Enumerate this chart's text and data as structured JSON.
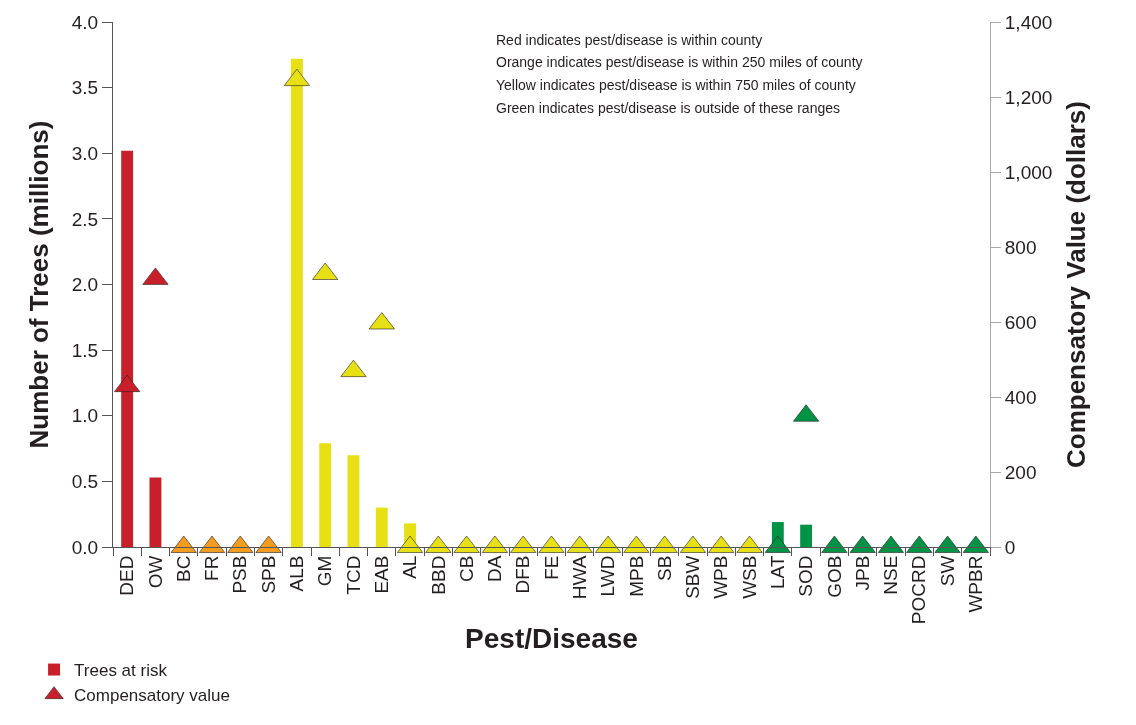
{
  "chart_data": {
    "type": "bar",
    "xlabel": "Pest/Disease",
    "ylabel": "Number of Trees (millions)",
    "y2label": "Compensatory Value (dollars)",
    "categories": [
      "DED",
      "OW",
      "BC",
      "FR",
      "PSB",
      "SPB",
      "ALB",
      "GM",
      "TCD",
      "EAB",
      "AL",
      "BBD",
      "CB",
      "DA",
      "DFB",
      "FE",
      "HWA",
      "LWD",
      "MPB",
      "SB",
      "SBW",
      "WPB",
      "WSB",
      "LAT",
      "SOD",
      "GOB",
      "JPB",
      "NSE",
      "POCRD",
      "SW",
      "WPBR"
    ],
    "series": [
      {
        "name": "Trees at risk",
        "colors": [
          "#c8202a",
          "#c8202a",
          "#f39c1f",
          "#f39c1f",
          "#f39c1f",
          "#f39c1f",
          "#e6e014",
          "#e6e014",
          "#e6e014",
          "#e6e014",
          "#e6e014",
          "#e6e014",
          "#e6e014",
          "#e6e014",
          "#e6e014",
          "#e6e014",
          "#e6e014",
          "#e6e014",
          "#e6e014",
          "#e6e014",
          "#e6e014",
          "#e6e014",
          "#e6e014",
          "#009245",
          "#009245",
          "#009245",
          "#009245",
          "#009245",
          "#009245",
          "#009245",
          "#009245"
        ],
        "values": [
          3.02,
          0.53,
          0,
          0,
          0,
          0,
          3.72,
          0.79,
          0.7,
          0.3,
          0.18,
          0,
          0,
          0,
          0,
          0,
          0,
          0,
          0,
          0,
          0,
          0,
          0,
          0.19,
          0.17,
          0,
          0,
          0,
          0,
          0,
          0
        ]
      },
      {
        "name": "Compensatory value",
        "type": "scatter",
        "axis": "y2",
        "marker": "triangle",
        "colors": [
          "#c8202a",
          "#c8202a",
          "#f39c1f",
          "#f39c1f",
          "#f39c1f",
          "#f39c1f",
          "#e6e014",
          "#e6e014",
          "#e6e014",
          "#e6e014",
          "#e6e014",
          "#e6e014",
          "#e6e014",
          "#e6e014",
          "#e6e014",
          "#e6e014",
          "#e6e014",
          "#e6e014",
          "#e6e014",
          "#e6e014",
          "#e6e014",
          "#e6e014",
          "#e6e014",
          "#009245",
          "#009245",
          "#009245",
          "#009245",
          "#009245",
          "#009245",
          "#009245",
          "#009245"
        ],
        "values": [
          429,
          715,
          0,
          0,
          0,
          0,
          1245,
          728,
          469,
          596,
          0,
          0,
          0,
          0,
          0,
          0,
          0,
          0,
          0,
          0,
          0,
          0,
          0,
          0,
          350,
          0,
          0,
          0,
          0,
          0,
          0
        ]
      }
    ],
    "ylim": [
      0,
      4.0
    ],
    "yticks": [
      {
        "value": 0,
        "label": "0.0"
      },
      {
        "value": 0.5,
        "label": "0.5"
      },
      {
        "value": 1,
        "label": "1.0"
      },
      {
        "value": 1.5,
        "label": "1.5"
      },
      {
        "value": 2,
        "label": "2.0"
      },
      {
        "value": 2.5,
        "label": "2.5"
      },
      {
        "value": 3,
        "label": "3.0"
      },
      {
        "value": 3.5,
        "label": "3.5"
      },
      {
        "value": 4,
        "label": "4.0"
      }
    ],
    "y2lim": [
      0,
      1400
    ],
    "y2ticks": [
      0,
      200,
      400,
      600,
      800,
      {
        "value": 1000,
        "label": "1,000"
      },
      {
        "value": 1200,
        "label": "1,200"
      },
      {
        "value": 1400,
        "label": "1,400"
      }
    ],
    "annotations": [
      "Red indicates pest/disease is within county",
      "Orange indicates pest/disease is within 250 miles of county",
      "Yellow indicates pest/disease is within 750 miles of county",
      "Green indicates pest/disease is outside of these ranges"
    ],
    "legend": "bottom left"
  }
}
